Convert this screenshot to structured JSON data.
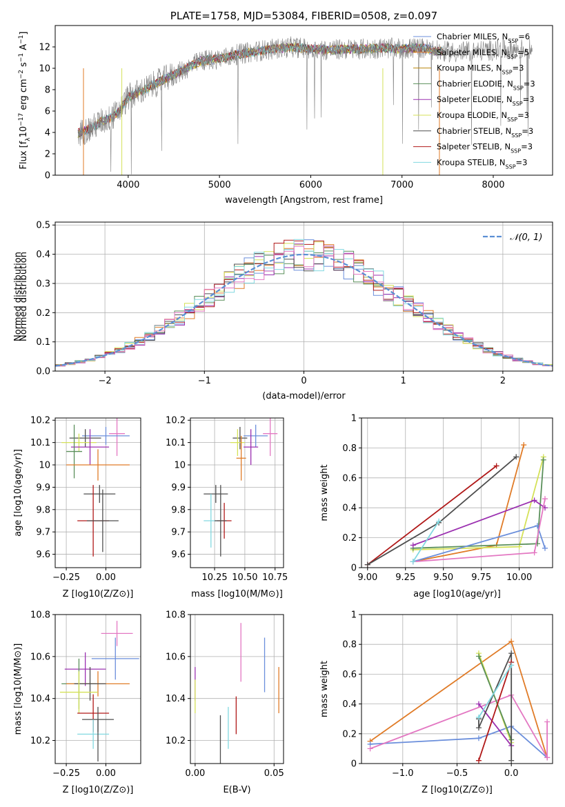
{
  "chart_data": [
    {
      "id": "spectrum",
      "type": "line",
      "title": "PLATE=1758, MJD=53084, FIBERID=0508, z=0.097",
      "xlabel": "wavelength [Angstrom, rest frame]",
      "ylabel_parts": [
        "Flux [f",
        "λ",
        "10",
        "−17",
        " erg cm",
        "−2",
        " s",
        "−1",
        " A",
        "−1",
        "]"
      ],
      "xlim": [
        3200,
        8650
      ],
      "ylim": [
        0,
        14
      ],
      "xticks": [
        4000,
        5000,
        6000,
        7000,
        8000
      ],
      "yticks": [
        0,
        2,
        4,
        6,
        8,
        10,
        12
      ],
      "grid": false,
      "legend": "upper right",
      "series": [
        {
          "name": "Chabrier MILES, N",
          "sub": "SSP",
          "suffix": "=6",
          "color": "#6a8edb"
        },
        {
          "name": "Salpeter MILES, N",
          "sub": "SSP",
          "suffix": "=5",
          "color": "#e07b27"
        },
        {
          "name": "Kroupa MILES, N",
          "sub": "SSP",
          "suffix": "=3",
          "color": "#b8860b"
        },
        {
          "name": "Chabrier ELODIE, N",
          "sub": "SSP",
          "suffix": "=3",
          "color": "#5a8f5a"
        },
        {
          "name": "Salpeter ELODIE, N",
          "sub": "SSP",
          "suffix": "=3",
          "color": "#9b30b0"
        },
        {
          "name": "Kroupa ELODIE, N",
          "sub": "SSP",
          "suffix": "=3",
          "color": "#d4e157"
        },
        {
          "name": "Chabrier STELIB, N",
          "sub": "SSP",
          "suffix": "=3",
          "color": "#4d4d4d"
        },
        {
          "name": "Salpeter STELIB, N",
          "sub": "SSP",
          "suffix": "=3",
          "color": "#b01818"
        },
        {
          "name": "Kroupa STELIB, N",
          "sub": "SSP",
          "suffix": "=3",
          "color": "#80d8e0"
        }
      ],
      "data_color": "#808080",
      "continuum": {
        "x": [
          3450,
          3600,
          3700,
          3800,
          3900,
          4000,
          4200,
          4400,
          4600,
          4800,
          5000,
          5200,
          5400,
          5600,
          5800,
          6000,
          6200,
          6400,
          6600,
          6800,
          7000,
          7200,
          7400,
          7600,
          8000,
          8400
        ],
        "y": [
          3.9,
          4.4,
          5.0,
          5.3,
          6.0,
          7.3,
          8.1,
          9.0,
          9.8,
          10.7,
          10.9,
          11.3,
          11.6,
          11.8,
          12.0,
          11.8,
          11.7,
          11.8,
          11.8,
          11.9,
          11.8,
          11.9,
          11.6,
          11.5,
          11.7,
          11.8
        ]
      }
    },
    {
      "id": "residuals",
      "type": "step",
      "xlabel": "(data-model)/error",
      "ylabel": "Normed distribution",
      "xlim": [
        -2.5,
        2.5
      ],
      "ylim": [
        0,
        0.51
      ],
      "xticks": [
        -2,
        -1,
        0,
        1,
        2
      ],
      "xtick_labels": [
        "−2",
        "−1",
        "0",
        "1",
        "2"
      ],
      "yticks": [
        0.0,
        0.1,
        0.2,
        0.3,
        0.4,
        0.5
      ],
      "ytick_labels": [
        "0.0",
        "0.1",
        "0.2",
        "0.3",
        "0.4",
        "0.5"
      ],
      "grid": true,
      "legend": "upper right",
      "gaussian_label": "𝒩(0, 1)",
      "gaussian_color": "#5b8fd4"
    },
    {
      "id": "age_vs_Z",
      "type": "errorbar",
      "xlabel": "Z [log10(Z/Z⊙)]",
      "ylabel": "age  [log10(age/yr)]",
      "xlim": [
        -0.32,
        0.22
      ],
      "ylim": [
        9.54,
        10.21
      ],
      "xticks": [
        -0.25,
        0.0
      ],
      "xtick_labels": [
        "−0.25",
        "0.00"
      ],
      "yticks": [
        9.6,
        9.7,
        9.8,
        9.9,
        10.0,
        10.1,
        10.2
      ],
      "points": [
        {
          "x": 0.07,
          "y": 10.14,
          "xerr": 0.05,
          "yerr": 0.1,
          "color": "#e377c2"
        },
        {
          "x": 0.0,
          "y": 10.13,
          "xerr": 0.15,
          "yerr": 0.04,
          "color": "#6a8edb"
        },
        {
          "x": -0.13,
          "y": 10.12,
          "xerr": 0.1,
          "yerr": 0.04,
          "color": "#4d4d4d"
        },
        {
          "x": -0.17,
          "y": 10.1,
          "xerr": 0.11,
          "yerr": 0.04,
          "color": "#d4e157"
        },
        {
          "x": -0.1,
          "y": 10.08,
          "xerr": 0.12,
          "yerr": 0.08,
          "color": "#9b30b0"
        },
        {
          "x": -0.2,
          "y": 10.06,
          "xerr": 0.05,
          "yerr": 0.12,
          "color": "#5a8f5a"
        },
        {
          "x": -0.05,
          "y": 10.0,
          "xerr": 0.2,
          "yerr": 0.07,
          "color": "#e07b27"
        },
        {
          "x": -0.04,
          "y": 9.87,
          "xerr": 0.1,
          "yerr": 0.04,
          "color": "#4d4d4d"
        },
        {
          "x": -0.08,
          "y": 9.75,
          "xerr": 0.1,
          "yerr": 0.16,
          "color": "#b01818"
        },
        {
          "x": -0.02,
          "y": 9.75,
          "xerr": 0.1,
          "yerr": 0.14,
          "color": "#4d4d4d"
        }
      ]
    },
    {
      "id": "age_vs_mass",
      "type": "errorbar",
      "xlabel": "mass [log10(M/M⊙)]",
      "xlim": [
        10.05,
        10.82
      ],
      "ylim": [
        9.54,
        10.21
      ],
      "xticks": [
        10.25,
        10.5,
        10.75
      ],
      "xtick_labels": [
        "10.25",
        "10.50",
        "10.75"
      ],
      "yticks": [
        9.6,
        9.7,
        9.8,
        9.9,
        10.0,
        10.1,
        10.2
      ],
      "points": [
        {
          "x": 10.71,
          "y": 10.14,
          "xerr": 0.06,
          "yerr": 0.1,
          "color": "#e377c2"
        },
        {
          "x": 10.59,
          "y": 10.13,
          "xerr": 0.1,
          "yerr": 0.05,
          "color": "#6a8edb"
        },
        {
          "x": 10.46,
          "y": 10.12,
          "xerr": 0.06,
          "yerr": 0.05,
          "color": "#4d4d4d"
        },
        {
          "x": 10.44,
          "y": 10.1,
          "xerr": 0.06,
          "yerr": 0.06,
          "color": "#d4e157"
        },
        {
          "x": 10.55,
          "y": 10.08,
          "xerr": 0.06,
          "yerr": 0.08,
          "color": "#9b30b0"
        },
        {
          "x": 10.47,
          "y": 10.03,
          "xerr": 0.04,
          "yerr": 0.1,
          "color": "#e07b27"
        },
        {
          "x": 10.26,
          "y": 9.87,
          "xerr": 0.1,
          "yerr": 0.04,
          "color": "#4d4d4d"
        },
        {
          "x": 10.33,
          "y": 9.75,
          "xerr": 0.06,
          "yerr": 0.08,
          "color": "#b01818"
        },
        {
          "x": 10.22,
          "y": 9.75,
          "xerr": 0.06,
          "yerr": 0.12,
          "color": "#80d8e0"
        },
        {
          "x": 10.3,
          "y": 9.75,
          "xerr": 0.05,
          "yerr": 0.16,
          "color": "#4d4d4d"
        }
      ]
    },
    {
      "id": "massweight_vs_age",
      "type": "line",
      "xlabel": "age  [log10(age/yr)]",
      "ylabel": "mass weight",
      "xlim": [
        8.96,
        10.22
      ],
      "ylim": [
        0.0,
        1.0
      ],
      "xticks": [
        9.0,
        9.25,
        9.5,
        9.75,
        10.0
      ],
      "xtick_labels": [
        "9.00",
        "9.25",
        "9.50",
        "9.75",
        "10.00"
      ],
      "yticks": [
        0.0,
        0.2,
        0.4,
        0.6,
        0.8,
        1.0
      ],
      "grid": true,
      "series": [
        {
          "color": "#b01818",
          "x": [
            9.0,
            9.85
          ],
          "y": [
            0.02,
            0.68
          ]
        },
        {
          "color": "#4d4d4d",
          "x": [
            9.0,
            9.47,
            9.98
          ],
          "y": [
            0.02,
            0.3,
            0.74
          ]
        },
        {
          "color": "#e07b27",
          "x": [
            9.3,
            9.85,
            10.03
          ],
          "y": [
            0.04,
            0.15,
            0.82
          ]
        },
        {
          "color": "#d4e157",
          "x": [
            9.3,
            10.0,
            10.16
          ],
          "y": [
            0.12,
            0.14,
            0.74
          ]
        },
        {
          "color": "#5a8f5a",
          "x": [
            9.3,
            10.12,
            10.16
          ],
          "y": [
            0.13,
            0.16,
            0.72
          ]
        },
        {
          "color": "#9b30b0",
          "x": [
            9.3,
            10.1,
            10.17
          ],
          "y": [
            0.15,
            0.45,
            0.4
          ]
        },
        {
          "color": "#6a8edb",
          "x": [
            9.3,
            10.12,
            10.17
          ],
          "y": [
            0.04,
            0.28,
            0.13
          ]
        },
        {
          "color": "#e377c2",
          "x": [
            9.3,
            10.1,
            10.17
          ],
          "y": [
            0.04,
            0.1,
            0.46
          ]
        },
        {
          "color": "#80d8e0",
          "x": [
            9.3,
            9.47
          ],
          "y": [
            0.04,
            0.31
          ]
        }
      ]
    },
    {
      "id": "mass_vs_Z",
      "type": "errorbar",
      "xlabel": "Z [log10(Z/Z⊙)]",
      "ylabel": "mass [log10(M/M⊙)]",
      "xlim": [
        -0.32,
        0.22
      ],
      "ylim": [
        10.09,
        10.8
      ],
      "xticks": [
        -0.25,
        0.0
      ],
      "xtick_labels": [
        "−0.25",
        "0.00"
      ],
      "yticks": [
        10.2,
        10.4,
        10.6,
        10.8
      ],
      "points": [
        {
          "x": 0.07,
          "y": 10.71,
          "xerr": 0.1,
          "yerr": 0.06,
          "color": "#e377c2"
        },
        {
          "x": 0.06,
          "y": 10.59,
          "xerr": 0.15,
          "yerr": 0.1,
          "color": "#6a8edb"
        },
        {
          "x": -0.13,
          "y": 10.54,
          "xerr": 0.13,
          "yerr": 0.08,
          "color": "#9b30b0"
        },
        {
          "x": -0.17,
          "y": 10.47,
          "xerr": 0.11,
          "yerr": 0.12,
          "color": "#5a8f5a"
        },
        {
          "x": -0.05,
          "y": 10.47,
          "xerr": 0.2,
          "yerr": 0.06,
          "color": "#e07b27"
        },
        {
          "x": -0.1,
          "y": 10.47,
          "xerr": 0.1,
          "yerr": 0.08,
          "color": "#4d4d4d"
        },
        {
          "x": -0.17,
          "y": 10.43,
          "xerr": 0.12,
          "yerr": 0.1,
          "color": "#d4e157"
        },
        {
          "x": -0.08,
          "y": 10.33,
          "xerr": 0.1,
          "yerr": 0.09,
          "color": "#b01818"
        },
        {
          "x": -0.05,
          "y": 10.3,
          "xerr": 0.1,
          "yerr": 0.06,
          "color": "#4d4d4d"
        },
        {
          "x": -0.08,
          "y": 10.23,
          "xerr": 0.1,
          "yerr": 0.07,
          "color": "#80d8e0"
        },
        {
          "x": -0.05,
          "y": 10.2,
          "xerr": 0.0,
          "yerr": 0.1,
          "color": "#4d4d4d"
        }
      ]
    },
    {
      "id": "mass_vs_ebv",
      "type": "errorbar",
      "xlabel": "E(B-V)",
      "xlim": [
        -0.003,
        0.056
      ],
      "ylim": [
        10.09,
        10.8
      ],
      "xticks": [
        0.0,
        0.05
      ],
      "xtick_labels": [
        "0.00",
        "0.05"
      ],
      "yticks": [
        10.2,
        10.4,
        10.6,
        10.8
      ],
      "points": [
        {
          "x": 0.0,
          "y": 10.47,
          "yerr": 0.08,
          "color": "#9b30b0"
        },
        {
          "x": 0.0,
          "y": 10.41,
          "yerr": 0.08,
          "color": "#d4e157"
        },
        {
          "x": 0.016,
          "y": 10.2,
          "yerr": 0.12,
          "color": "#4d4d4d"
        },
        {
          "x": 0.021,
          "y": 10.26,
          "yerr": 0.1,
          "color": "#80d8e0"
        },
        {
          "x": 0.026,
          "y": 10.32,
          "yerr": 0.09,
          "color": "#b01818"
        },
        {
          "x": 0.029,
          "y": 10.62,
          "yerr": 0.14,
          "color": "#e377c2"
        },
        {
          "x": 0.044,
          "y": 10.56,
          "yerr": 0.13,
          "color": "#6a8edb"
        },
        {
          "x": 0.053,
          "y": 10.44,
          "yerr": 0.11,
          "color": "#e07b27"
        }
      ]
    },
    {
      "id": "massweight_vs_Z",
      "type": "line",
      "xlabel": "Z [log10(Z/Z⊙)]",
      "ylabel": "mass weight",
      "xlim": [
        -1.38,
        0.38
      ],
      "ylim": [
        0.0,
        1.0
      ],
      "xticks": [
        -1.0,
        -0.5,
        0.0
      ],
      "xtick_labels": [
        "−1.0",
        "−0.5",
        "0.0"
      ],
      "yticks": [
        0.0,
        0.2,
        0.4,
        0.6,
        0.8,
        1.0
      ],
      "grid": true,
      "series": [
        {
          "color": "#e07b27",
          "x": [
            -1.3,
            0.0,
            0.33
          ],
          "y": [
            0.15,
            0.82,
            0.04
          ]
        },
        {
          "color": "#6a8edb",
          "x": [
            -1.3,
            -0.3,
            0.0,
            0.33
          ],
          "y": [
            0.13,
            0.17,
            0.25,
            0.04
          ]
        },
        {
          "color": "#e377c2",
          "x": [
            -1.3,
            0.0,
            0.33,
            0.33
          ],
          "y": [
            0.1,
            0.46,
            0.04,
            0.28
          ]
        },
        {
          "color": "#d4e157",
          "x": [
            -0.3,
            0.0
          ],
          "y": [
            0.74,
            0.14
          ]
        },
        {
          "color": "#5a8f5a",
          "x": [
            -0.3,
            0.0
          ],
          "y": [
            0.72,
            0.16
          ]
        },
        {
          "color": "#9b30b0",
          "x": [
            -0.3,
            0.0
          ],
          "y": [
            0.4,
            0.12
          ]
        },
        {
          "color": "#4d4d4d",
          "x": [
            -0.3,
            -0.3,
            0.0,
            0.0
          ],
          "y": [
            0.3,
            0.24,
            0.74,
            0.02
          ]
        },
        {
          "color": "#b01818",
          "x": [
            -0.3,
            0.0
          ],
          "y": [
            0.02,
            0.68
          ]
        },
        {
          "color": "#80d8e0",
          "x": [
            -0.3,
            0.0
          ],
          "y": [
            0.31,
            0.66
          ]
        }
      ]
    }
  ]
}
